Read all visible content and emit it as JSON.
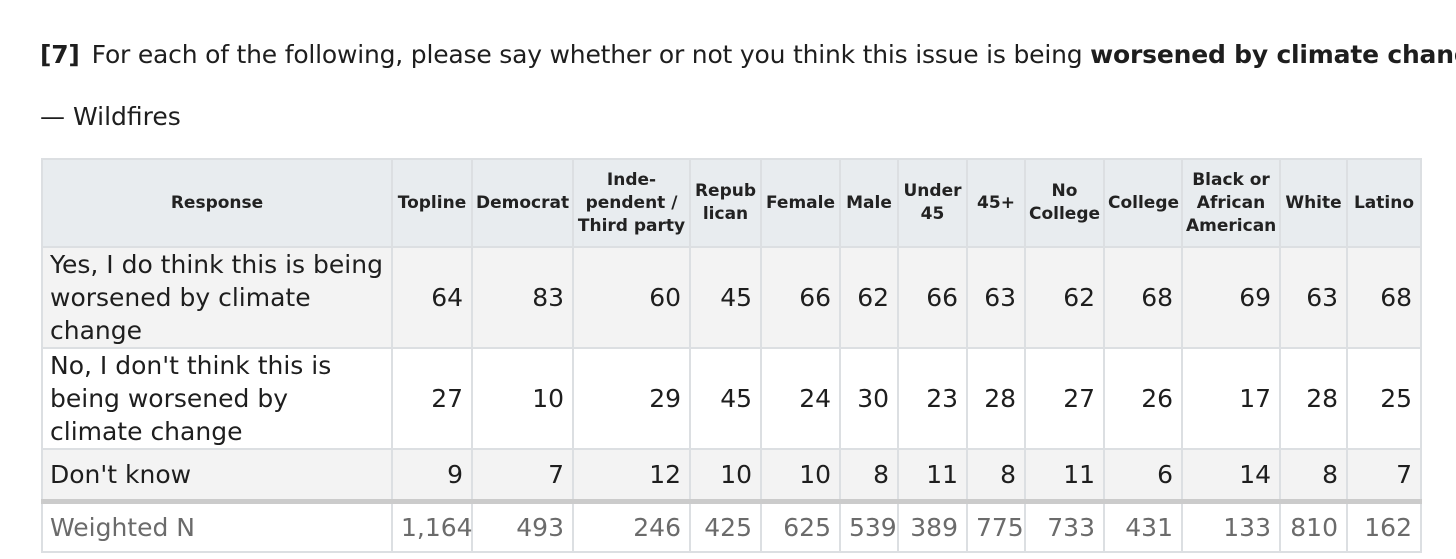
{
  "question": {
    "number": "[7]",
    "text_before": "For each of the following, please say whether or not you think this issue is being ",
    "text_bold": "worsened by climate change",
    "text_after": ":"
  },
  "subtitle": "— Wildfires",
  "table": {
    "headers": [
      "Response",
      "Topline",
      "Democrat",
      "Inde-\npendent /\nThird party",
      "Repub\nlican",
      "Female",
      "Male",
      "Under\n45",
      "45+",
      "No\nCollege",
      "College",
      "Black or\nAfrican\nAmerican",
      "White",
      "Latino"
    ],
    "rows": [
      {
        "label": "Yes, I do think this is being worsened by climate change",
        "values": [
          "64",
          "83",
          "60",
          "45",
          "66",
          "62",
          "66",
          "63",
          "62",
          "68",
          "69",
          "63",
          "68"
        ]
      },
      {
        "label": "No, I don't think this is being worsened by climate change",
        "values": [
          "27",
          "10",
          "29",
          "45",
          "24",
          "30",
          "23",
          "28",
          "27",
          "26",
          "17",
          "28",
          "25"
        ]
      },
      {
        "label": "Don't know",
        "values": [
          "9",
          "7",
          "12",
          "10",
          "10",
          "8",
          "11",
          "8",
          "11",
          "6",
          "14",
          "8",
          "7"
        ]
      }
    ],
    "footer": {
      "label": "Weighted N",
      "values": [
        "1,164",
        "493",
        "246",
        "425",
        "625",
        "539",
        "389",
        "775",
        "733",
        "431",
        "133",
        "810",
        "162"
      ]
    }
  }
}
